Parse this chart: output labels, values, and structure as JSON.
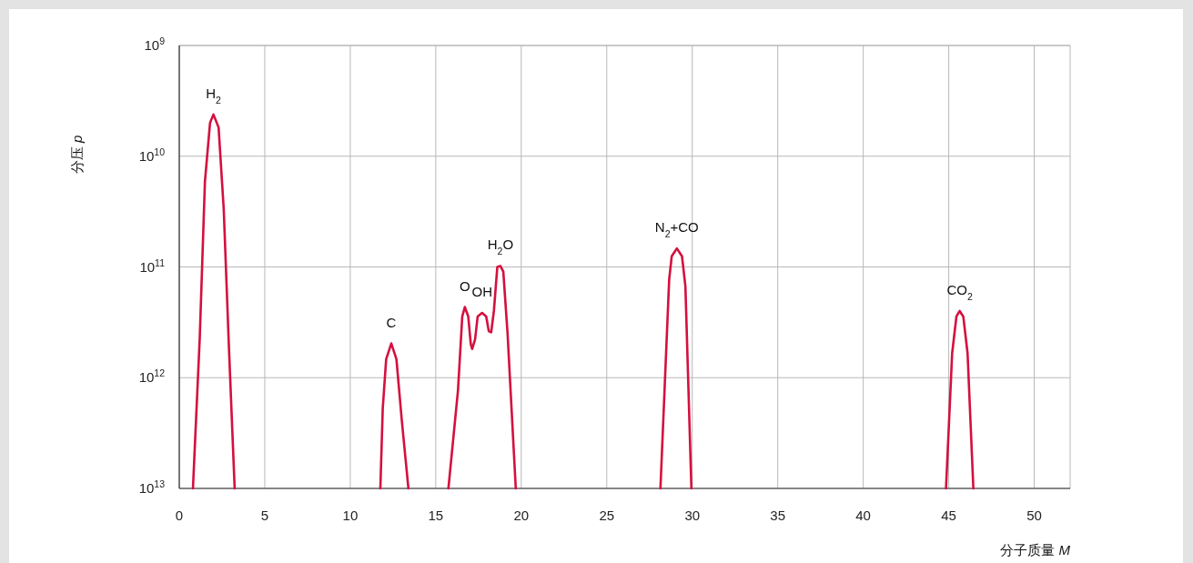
{
  "chart_data": {
    "type": "line",
    "xlabel": "分子质量 *M*",
    "ylabel": "分压 *p*",
    "log": "y",
    "grid": true,
    "xlim": [
      0,
      52.1
    ],
    "xticks": [
      0,
      5,
      10,
      15,
      20,
      25,
      30,
      35,
      40,
      45,
      50
    ],
    "ylim": [
      10000000000000.0,
      1000000000.0
    ],
    "yticks": [
      {
        "value": 1000000000.0,
        "label": "10$^{9}$"
      },
      {
        "value": 10000000000.0,
        "label": "10$^{10}$"
      },
      {
        "value": 100000000000.0,
        "label": "10$^{11}$"
      },
      {
        "value": 1000000000000.0,
        "label": "10$^{12}$"
      },
      {
        "value": 10000000000000.0,
        "label": "10$^{13}$"
      }
    ],
    "series": [
      {
        "color": "#d4103f",
        "x": [
          0.8,
          1.2,
          1.5,
          1.8,
          2.0,
          2.3,
          2.6,
          2.9,
          3.24
        ],
        "values": [
          10000000000000.0,
          430000000000.0,
          17000000000.0,
          5000000000.0,
          4200000000.0,
          5500000000.0,
          30000000000.0,
          510000000000.0,
          10000000000000.0
        ]
      },
      {
        "color": "#d4103f",
        "x": [
          11.76,
          11.9,
          12.1,
          12.4,
          12.7,
          13.0,
          13.4
        ],
        "values": [
          10000000000000.0,
          1900000000000.0,
          680000000000.0,
          490000000000.0,
          680000000000.0,
          2300000000000.0,
          10000000000000.0
        ]
      },
      {
        "color": "#d4103f",
        "x": [
          15.74,
          16.3,
          16.55,
          16.7,
          16.9,
          17.05,
          17.13,
          17.3,
          17.45,
          17.71,
          17.95,
          18.1,
          18.24,
          18.4,
          18.6,
          18.78,
          18.95,
          19.2,
          19.68
        ],
        "values": [
          10000000000000.0,
          1300000000000.0,
          280000000000.0,
          230000000000.0,
          280000000000.0,
          500000000000.0,
          550000000000.0,
          450000000000.0,
          280000000000.0,
          260000000000.0,
          280000000000.0,
          380000000000.0,
          390000000000.0,
          250000000000.0,
          100000000000.0,
          98000000000.0,
          110000000000.0,
          400000000000.0,
          10000000000000.0
        ]
      },
      {
        "color": "#d4103f",
        "x": [
          28.14,
          28.65,
          28.8,
          29.1,
          29.4,
          29.6,
          29.95
        ],
        "values": [
          10000000000000.0,
          130000000000.0,
          80000000000.0,
          68000000000.0,
          80000000000.0,
          150000000000.0,
          10000000000000.0
        ]
      },
      {
        "color": "#d4103f",
        "x": [
          44.84,
          45.2,
          45.45,
          45.64,
          45.85,
          46.1,
          46.44
        ],
        "values": [
          10000000000000.0,
          600000000000.0,
          280000000000.0,
          250000000000.0,
          280000000000.0,
          600000000000.0,
          10000000000000.0
        ]
      }
    ],
    "annotations": [
      {
        "text": "H$_{2}$",
        "x": 2.0,
        "y": 4200000000.0
      },
      {
        "text": "C",
        "x": 12.4,
        "y": 490000000000.0
      },
      {
        "text": "OH",
        "x": 17.71,
        "y": 260000000000.0
      },
      {
        "text": "O",
        "x": 16.7,
        "y": 230000000000.0
      },
      {
        "text": "H$_{2}$O",
        "x": 18.78,
        "y": 98000000000.0
      },
      {
        "text": "N$_{2}$+CO",
        "x": 29.1,
        "y": 68000000000.0
      },
      {
        "text": "CO$_{2}$",
        "x": 45.64,
        "y": 250000000000.0
      }
    ]
  }
}
